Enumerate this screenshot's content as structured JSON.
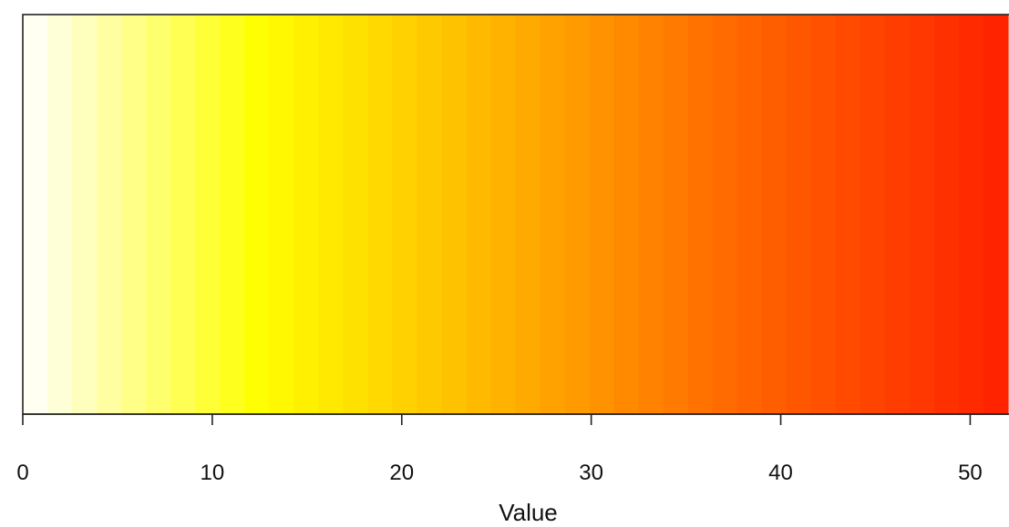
{
  "chart_data": {
    "type": "heatmap",
    "title": "",
    "xlabel": "Value",
    "ylabel": "",
    "xlim": [
      0,
      52
    ],
    "x_ticks": [
      0,
      10,
      20,
      30,
      40,
      50
    ],
    "x_tick_labels": [
      "0",
      "10",
      "20",
      "30",
      "40",
      "50"
    ],
    "grid": false,
    "legend": "none",
    "colorscale": {
      "stops": [
        {
          "value": 0,
          "color": "#ffffff"
        },
        {
          "value": 12.5,
          "color": "#ffff00"
        },
        {
          "value": 25,
          "color": "#ffb400"
        },
        {
          "value": 36,
          "color": "#ff7000"
        },
        {
          "value": 52,
          "color": "#ff2000"
        }
      ],
      "steps": 40
    }
  }
}
